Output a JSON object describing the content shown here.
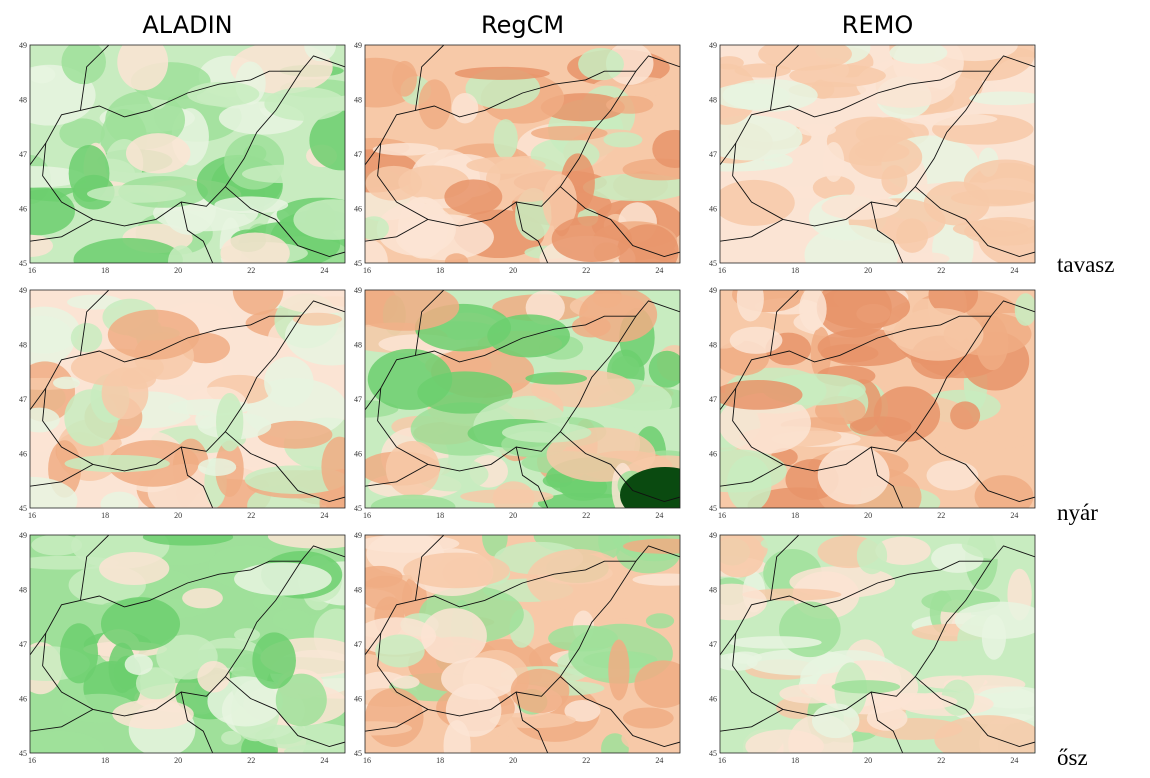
{
  "columns": [
    "ALADIN",
    "RegCM",
    "REMO"
  ],
  "rows": [
    "tavasz",
    "nyár",
    "ősz"
  ],
  "x_ticks": [
    16,
    18,
    20,
    22,
    24
  ],
  "y_ticks": [
    45,
    46,
    47,
    48,
    49
  ]
}
